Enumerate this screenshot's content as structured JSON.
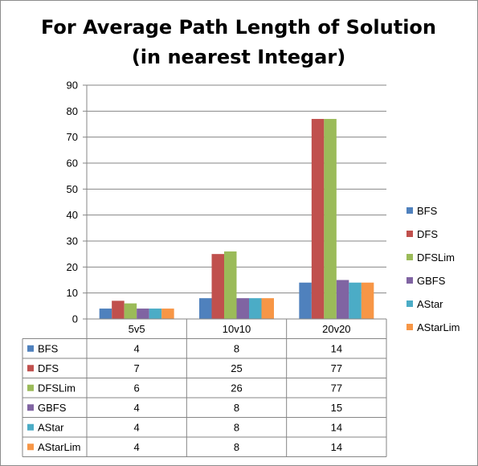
{
  "chart_data": {
    "type": "bar",
    "title": [
      "For Average Path Length of Solution",
      "(in nearest Integar)"
    ],
    "xlabel": "",
    "ylabel": "",
    "categories": [
      "5v5",
      "10v10",
      "20v20"
    ],
    "ylim": [
      0,
      90
    ],
    "yticks": [
      0,
      10,
      20,
      30,
      40,
      50,
      60,
      70,
      80,
      90
    ],
    "grid": true,
    "legend": "right",
    "data_table": true,
    "series": [
      {
        "name": "BFS",
        "values": [
          4,
          8,
          14
        ],
        "color": "#4f81bd"
      },
      {
        "name": "DFS",
        "values": [
          7,
          25,
          77
        ],
        "color": "#c0504d"
      },
      {
        "name": "DFSLim",
        "values": [
          6,
          26,
          77
        ],
        "color": "#9bbb59"
      },
      {
        "name": "GBFS",
        "values": [
          4,
          8,
          15
        ],
        "color": "#8064a2"
      },
      {
        "name": "AStar",
        "values": [
          4,
          8,
          14
        ],
        "color": "#4bacc6"
      },
      {
        "name": "AStarLim",
        "values": [
          4,
          8,
          14
        ],
        "color": "#f79646"
      }
    ]
  }
}
